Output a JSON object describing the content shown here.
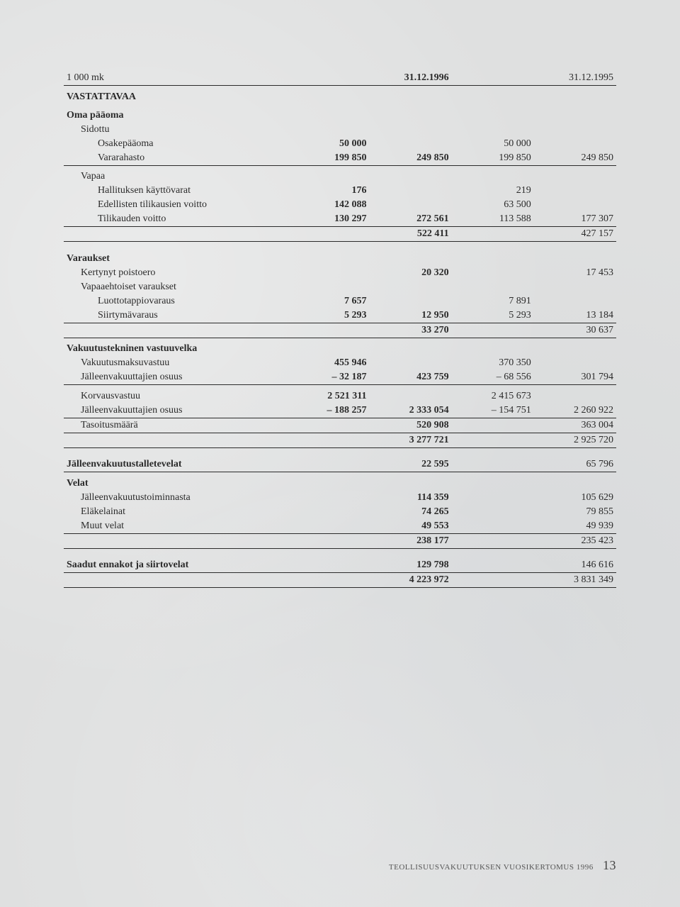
{
  "header": {
    "unit": "1 000 mk",
    "d1": "31.12.1996",
    "d2": "31.12.1995"
  },
  "s_vastattavaa": "VASTATTAVAA",
  "oma": {
    "title": "Oma pääoma",
    "sidottu": "Sidottu",
    "osakepaaoma": {
      "l": "Osakepääoma",
      "a": "50 000",
      "c": "50 000"
    },
    "vararahasto": {
      "l": "Vararahasto",
      "a": "199 850",
      "b": "249 850",
      "c": "199 850",
      "d": "249 850"
    },
    "vapaa": "Vapaa",
    "hall": {
      "l": "Hallituksen käyttövarat",
      "a": "176",
      "c": "219"
    },
    "edell": {
      "l": "Edellisten tilikausien voitto",
      "a": "142 088",
      "c": "63 500"
    },
    "tilik": {
      "l": "Tilikauden voitto",
      "a": "130 297",
      "b": "272 561",
      "c": "113 588",
      "d": "177 307"
    },
    "sum": {
      "b": "522 411",
      "d": "427 157"
    }
  },
  "var": {
    "title": "Varaukset",
    "kert": {
      "l": "Kertynyt poistoero",
      "b": "20 320",
      "d": "17 453"
    },
    "vapaa": "Vapaaehtoiset varaukset",
    "luotto": {
      "l": "Luottotappiovaraus",
      "a": "7 657",
      "c": "7 891"
    },
    "siirt": {
      "l": "Siirtymävaraus",
      "a": "5 293",
      "b": "12 950",
      "c": "5 293",
      "d": "13 184"
    },
    "sum": {
      "b": "33 270",
      "d": "30 637"
    }
  },
  "vak": {
    "title": "Vakuutustekninen vastuuvelka",
    "maksu": {
      "l": "Vakuutusmaksuvastuu",
      "a": "455 946",
      "c": "370 350"
    },
    "jalleen1": {
      "l": "Jälleenvakuuttajien osuus",
      "a": "– 32 187",
      "b": "423 759",
      "c": "– 68 556",
      "d": "301 794"
    },
    "korv": {
      "l": "Korvausvastuu",
      "a": "2 521 311",
      "c": "2 415 673"
    },
    "jalleen2": {
      "l": "Jälleenvakuuttajien osuus",
      "a": "– 188 257",
      "b": "2 333 054",
      "c": "– 154 751",
      "d": "2 260 922"
    },
    "taso": {
      "l": "Tasoitusmäärä",
      "b": "520 908",
      "d": "363 004"
    },
    "sum": {
      "b": "3 277 721",
      "d": "2 925 720"
    }
  },
  "jtv": {
    "l": "Jälleenvakuutustalletevelat",
    "b": "22 595",
    "d": "65 796"
  },
  "velat": {
    "title": "Velat",
    "jvt": {
      "l": "Jälleenvakuutustoiminnasta",
      "b": "114 359",
      "d": "105 629"
    },
    "elake": {
      "l": "Eläkelainat",
      "b": "74 265",
      "d": "79 855"
    },
    "muut": {
      "l": "Muut velat",
      "b": "49 553",
      "d": "49 939"
    },
    "sum": {
      "b": "238 177",
      "d": "235 423"
    }
  },
  "saadut": {
    "l": "Saadut ennakot ja siirtovelat",
    "b": "129 798",
    "d": "146 616"
  },
  "total": {
    "b": "4 223 972",
    "d": "3 831 349"
  },
  "footer": {
    "text": "TEOLLISUUSVAKUUTUKSEN VUOSIKERTOMUS 1996",
    "page": "13"
  }
}
